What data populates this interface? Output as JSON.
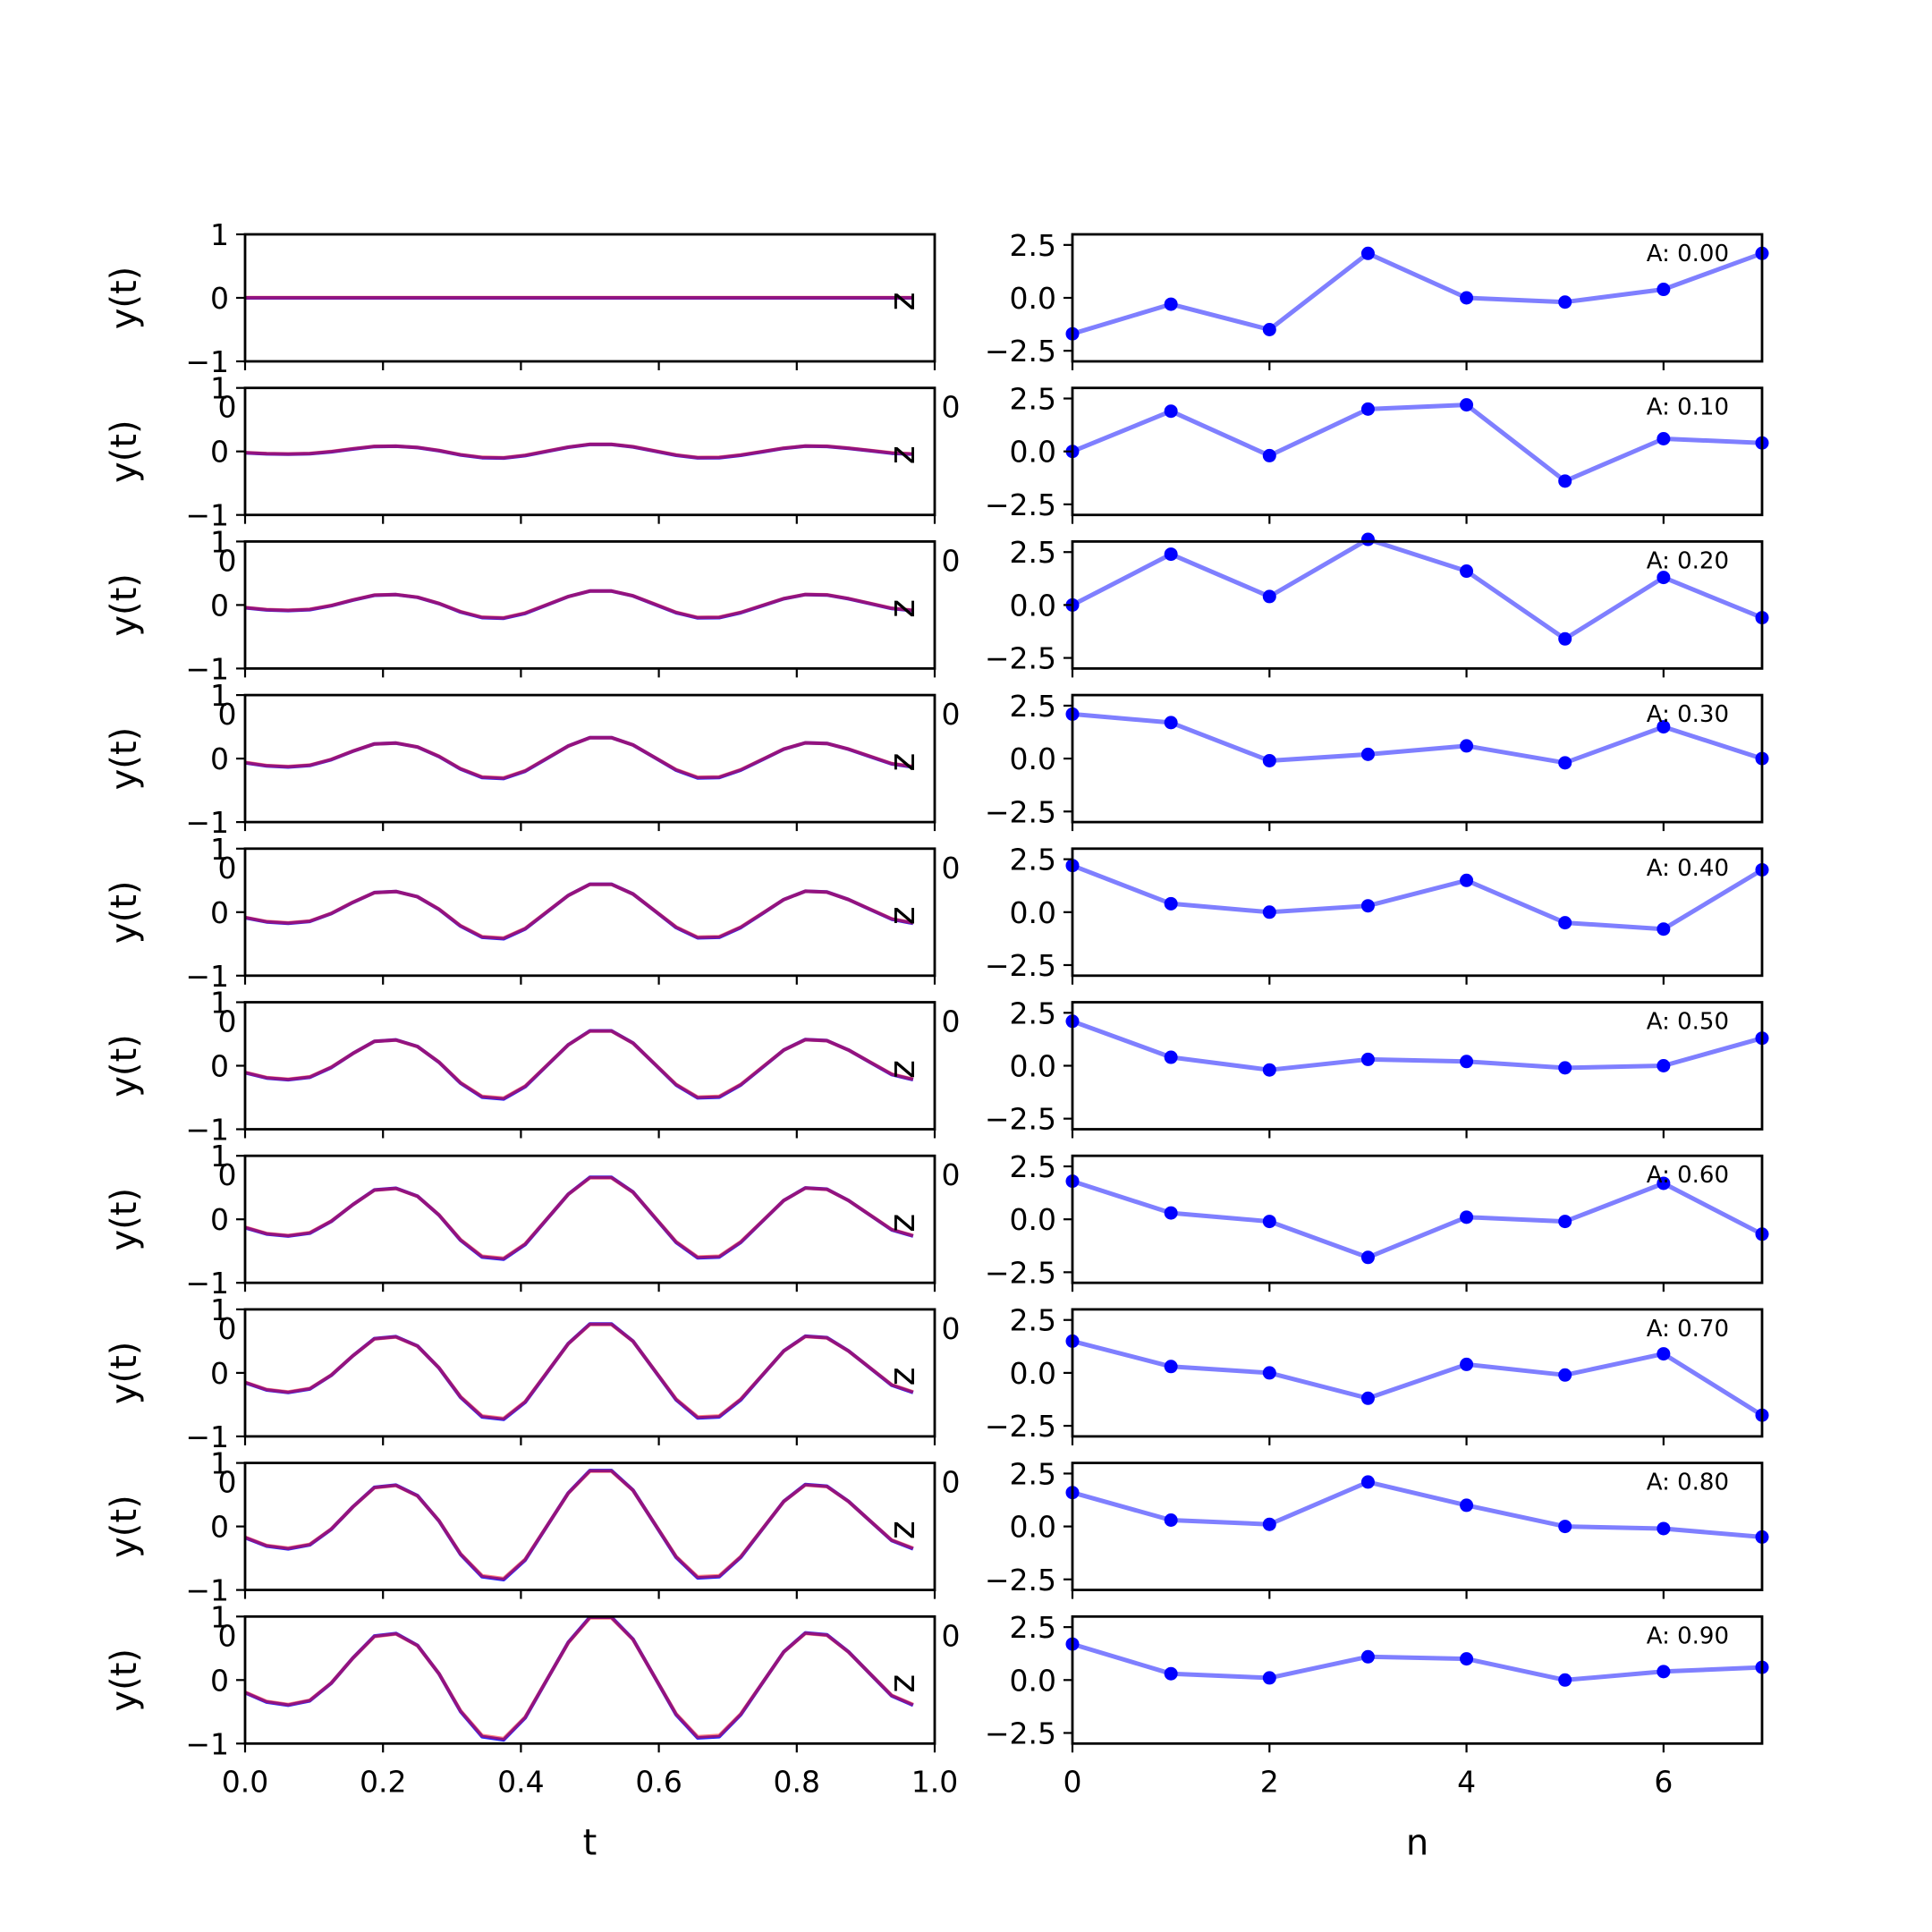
{
  "chart_data": {
    "type": "line",
    "layout": "10 rows x 2 columns of subplots",
    "colors": {
      "signal_a": "#0000ff",
      "signal_b": "#ff0000",
      "coefficients": "#0000ff"
    },
    "left_column": {
      "xlabel": "t",
      "ylabel": "y(t)",
      "xlim": [
        0.0,
        1.0
      ],
      "ylim": [
        -1,
        1
      ],
      "xticks": [
        "0.0",
        "0.2",
        "0.4",
        "0.6",
        "0.8",
        "1.0"
      ],
      "yticks": [
        "1",
        "0",
        "-1"
      ],
      "series_style": "overlapping blue and red lines (appear purple)",
      "edge_labels": {
        "left": "0",
        "right": "0",
        "right_glyph": "z"
      },
      "t": [
        0.0,
        0.03125,
        0.0625,
        0.09375,
        0.125,
        0.15625,
        0.1875,
        0.21875,
        0.25,
        0.28125,
        0.3125,
        0.34375,
        0.375,
        0.40625,
        0.4375,
        0.46875,
        0.5,
        0.53125,
        0.5625,
        0.59375,
        0.625,
        0.65625,
        0.6875,
        0.71875,
        0.75,
        0.78125,
        0.8125,
        0.84375,
        0.875,
        0.90625,
        0.9375,
        0.96875
      ],
      "base_shape": [
        -0.2,
        -0.35,
        -0.4,
        -0.33,
        -0.05,
        0.35,
        0.7,
        0.74,
        0.55,
        0.1,
        -0.5,
        -0.9,
        -0.95,
        -0.6,
        0.0,
        0.6,
        1.0,
        1.0,
        0.65,
        0.05,
        -0.55,
        -0.92,
        -0.9,
        -0.55,
        -0.05,
        0.45,
        0.75,
        0.72,
        0.45,
        0.1,
        -0.25,
        -0.4
      ],
      "panel_scale": [
        0.0,
        0.11,
        0.22,
        0.33,
        0.44,
        0.55,
        0.66,
        0.77,
        0.88,
        0.99
      ]
    },
    "right_column": {
      "xlabel": "n",
      "xlim": [
        0,
        7
      ],
      "ylim": [
        -3,
        3
      ],
      "xticks": [
        "0",
        "2",
        "4",
        "6"
      ],
      "yticks": [
        "2.5",
        "0.0",
        "-2.5"
      ],
      "series_style": "semi-transparent blue line with blue dot markers",
      "n": [
        0,
        1,
        2,
        3,
        4,
        5,
        6,
        7
      ],
      "panels": [
        {
          "annotation": "A: 0.00",
          "values": [
            -1.7,
            -0.3,
            -1.5,
            2.1,
            0.0,
            -0.2,
            0.4,
            2.1
          ]
        },
        {
          "annotation": "A: 0.10",
          "values": [
            0.0,
            1.9,
            -0.2,
            2.0,
            2.2,
            -1.4,
            0.6,
            0.4
          ]
        },
        {
          "annotation": "A: 0.20",
          "values": [
            0.0,
            2.4,
            0.4,
            3.1,
            1.6,
            -1.6,
            1.3,
            -0.6
          ]
        },
        {
          "annotation": "A: 0.30",
          "values": [
            2.1,
            1.7,
            -0.1,
            0.2,
            0.6,
            -0.2,
            1.5,
            0.0
          ]
        },
        {
          "annotation": "A: 0.40",
          "values": [
            2.2,
            0.4,
            0.0,
            0.3,
            1.5,
            -0.5,
            -0.8,
            2.0
          ]
        },
        {
          "annotation": "A: 0.50",
          "values": [
            2.1,
            0.4,
            -0.2,
            0.3,
            0.2,
            -0.1,
            0.0,
            1.3
          ]
        },
        {
          "annotation": "A: 0.60",
          "values": [
            1.8,
            0.3,
            -0.1,
            -1.8,
            0.1,
            -0.1,
            1.7,
            -0.7
          ]
        },
        {
          "annotation": "A: 0.70",
          "values": [
            1.5,
            0.3,
            0.0,
            -1.2,
            0.4,
            -0.1,
            0.9,
            -2.0
          ]
        },
        {
          "annotation": "A: 0.80",
          "values": [
            1.6,
            0.3,
            0.1,
            2.1,
            1.0,
            0.0,
            -0.1,
            -0.5
          ]
        },
        {
          "annotation": "A: 0.90",
          "values": [
            1.7,
            0.3,
            0.1,
            1.1,
            1.0,
            0.0,
            0.4,
            0.6
          ]
        }
      ]
    },
    "grid": false,
    "legend": "none"
  }
}
